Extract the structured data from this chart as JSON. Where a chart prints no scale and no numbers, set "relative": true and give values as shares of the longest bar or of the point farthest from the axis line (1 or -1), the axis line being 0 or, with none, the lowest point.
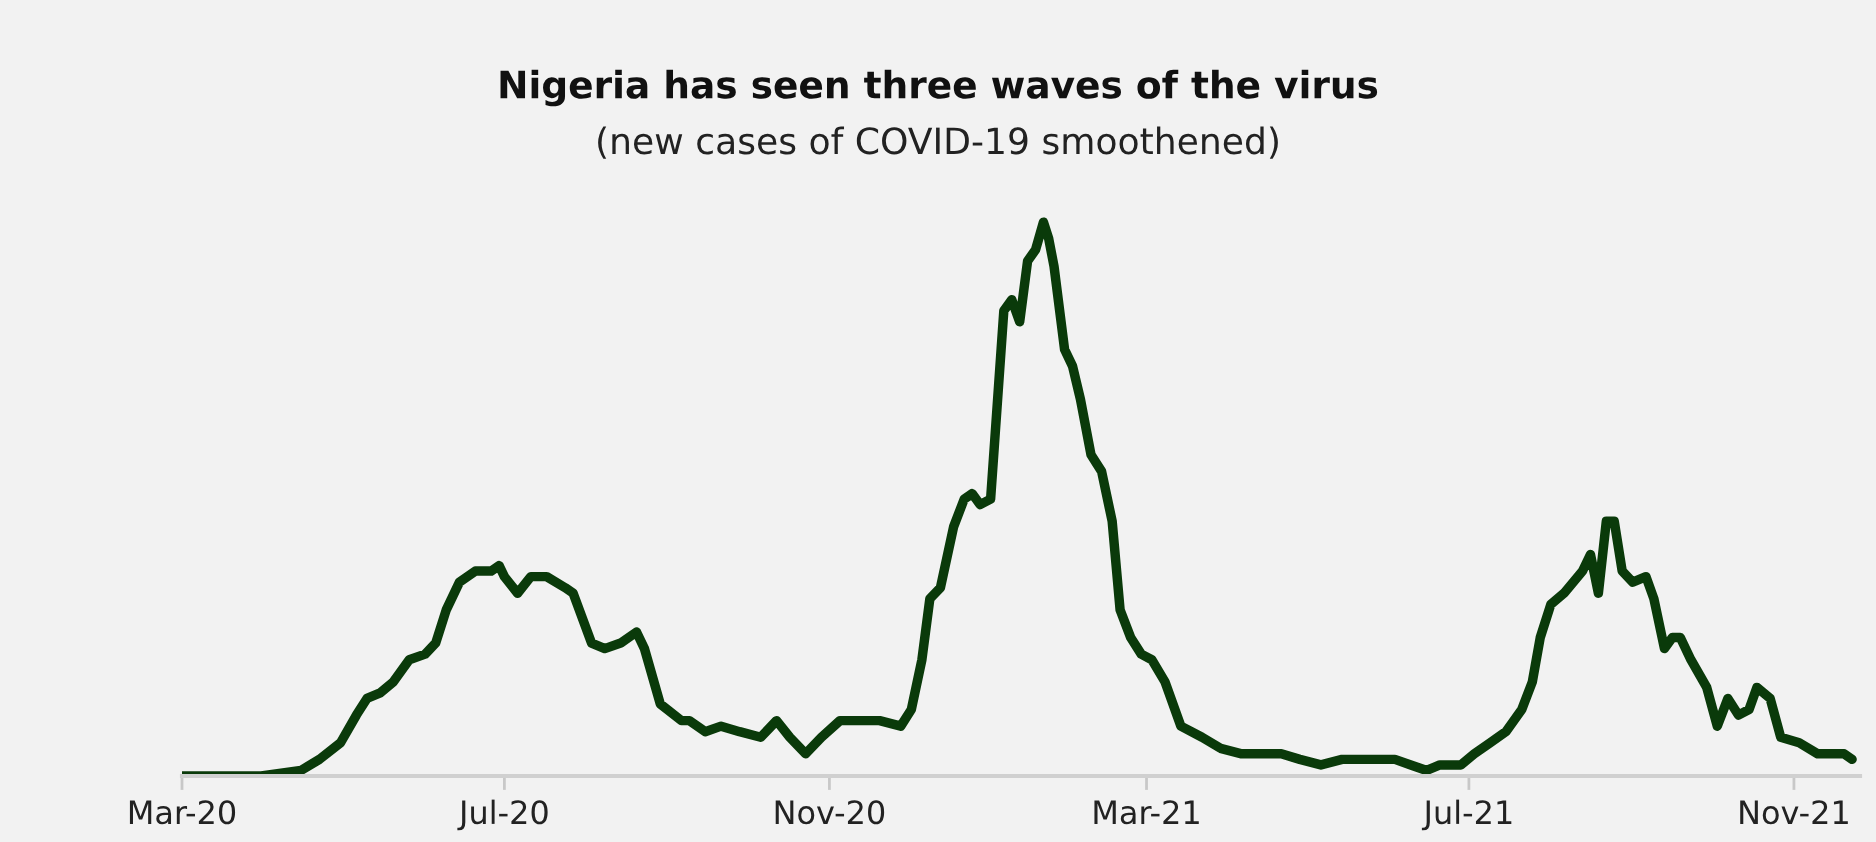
{
  "chart_data": {
    "type": "line",
    "title": "Nigeria has seen three waves of the virus",
    "subtitle": "(new cases of COVID-19 smoothened)",
    "relative": true,
    "grid": false,
    "legend": false,
    "marker": "none",
    "line_style": "solid",
    "xlim": [
      "2020-03-01",
      "2021-11-26"
    ],
    "xticks": [
      {
        "value": "2020-03-01",
        "label": "Mar-20"
      },
      {
        "value": "2020-07-01",
        "label": "Jul-20"
      },
      {
        "value": "2020-11-01",
        "label": "Nov-20"
      },
      {
        "value": "2021-03-01",
        "label": "Mar-21"
      },
      {
        "value": "2021-07-01",
        "label": "Jul-21"
      },
      {
        "value": "2021-11-01",
        "label": "Nov-21"
      }
    ],
    "x": [
      "2020-03-01",
      "2020-03-31",
      "2020-04-15",
      "2020-04-22",
      "2020-04-30",
      "2020-05-06",
      "2020-05-10",
      "2020-05-15",
      "2020-05-20",
      "2020-05-26",
      "2020-06-01",
      "2020-06-05",
      "2020-06-09",
      "2020-06-14",
      "2020-06-20",
      "2020-06-26",
      "2020-06-29",
      "2020-07-01",
      "2020-07-06",
      "2020-07-11",
      "2020-07-17",
      "2020-07-24",
      "2020-07-27",
      "2020-08-03",
      "2020-08-08",
      "2020-08-14",
      "2020-08-20",
      "2020-08-23",
      "2020-08-29",
      "2020-09-06",
      "2020-09-09",
      "2020-09-15",
      "2020-09-21",
      "2020-09-28",
      "2020-10-06",
      "2020-10-12",
      "2020-10-17",
      "2020-10-23",
      "2020-10-29",
      "2020-11-05",
      "2020-11-13",
      "2020-11-20",
      "2020-11-28",
      "2020-12-02",
      "2020-12-06",
      "2020-12-09",
      "2020-12-13",
      "2020-12-18",
      "2020-12-22",
      "2020-12-25",
      "2020-12-28",
      "2021-01-01",
      "2021-01-06",
      "2021-01-09",
      "2021-01-12",
      "2021-01-15",
      "2021-01-18",
      "2021-01-21",
      "2021-01-23",
      "2021-01-25",
      "2021-01-29",
      "2021-02-01",
      "2021-02-04",
      "2021-02-08",
      "2021-02-12",
      "2021-02-16",
      "2021-02-19",
      "2021-02-23",
      "2021-02-27",
      "2021-03-03",
      "2021-03-08",
      "2021-03-14",
      "2021-03-22",
      "2021-03-29",
      "2021-04-06",
      "2021-04-13",
      "2021-04-21",
      "2021-04-28",
      "2021-05-06",
      "2021-05-14",
      "2021-05-21",
      "2021-05-29",
      "2021-06-03",
      "2021-06-09",
      "2021-06-15",
      "2021-06-20",
      "2021-06-28",
      "2021-07-03",
      "2021-07-09",
      "2021-07-15",
      "2021-07-21",
      "2021-07-25",
      "2021-07-28",
      "2021-08-01",
      "2021-08-06",
      "2021-08-13",
      "2021-08-16",
      "2021-08-19",
      "2021-08-22",
      "2021-08-25",
      "2021-08-28",
      "2021-09-01",
      "2021-09-06",
      "2021-09-09",
      "2021-09-13",
      "2021-09-16",
      "2021-09-19",
      "2021-09-23",
      "2021-09-29",
      "2021-10-03",
      "2021-10-07",
      "2021-10-11",
      "2021-10-15",
      "2021-10-18",
      "2021-10-23",
      "2021-10-27",
      "2021-11-03",
      "2021-11-10",
      "2021-11-17",
      "2021-11-20",
      "2021-11-23"
    ],
    "series": [
      {
        "color": "#0a3a0a",
        "values": [
          0,
          0,
          0.01,
          0.03,
          0.06,
          0.11,
          0.14,
          0.15,
          0.17,
          0.21,
          0.22,
          0.24,
          0.3,
          0.35,
          0.37,
          0.37,
          0.38,
          0.36,
          0.33,
          0.36,
          0.36,
          0.34,
          0.33,
          0.24,
          0.23,
          0.24,
          0.26,
          0.23,
          0.13,
          0.1,
          0.1,
          0.08,
          0.09,
          0.08,
          0.07,
          0.1,
          0.07,
          0.04,
          0.07,
          0.1,
          0.1,
          0.1,
          0.09,
          0.12,
          0.21,
          0.32,
          0.34,
          0.45,
          0.5,
          0.51,
          0.49,
          0.5,
          0.84,
          0.86,
          0.82,
          0.93,
          0.95,
          1,
          0.97,
          0.92,
          0.77,
          0.74,
          0.68,
          0.58,
          0.55,
          0.46,
          0.3,
          0.25,
          0.22,
          0.21,
          0.17,
          0.09,
          0.07,
          0.05,
          0.04,
          0.04,
          0.04,
          0.03,
          0.02,
          0.03,
          0.03,
          0.03,
          0.03,
          0.02,
          0.01,
          0.02,
          0.02,
          0.04,
          0.06,
          0.08,
          0.12,
          0.17,
          0.25,
          0.31,
          0.33,
          0.37,
          0.4,
          0.33,
          0.46,
          0.46,
          0.37,
          0.35,
          0.36,
          0.32,
          0.23,
          0.25,
          0.25,
          0.21,
          0.16,
          0.09,
          0.14,
          0.11,
          0.12,
          0.16,
          0.14,
          0.07,
          0.06,
          0.04,
          0.04,
          0.04,
          0.03
        ]
      }
    ]
  }
}
